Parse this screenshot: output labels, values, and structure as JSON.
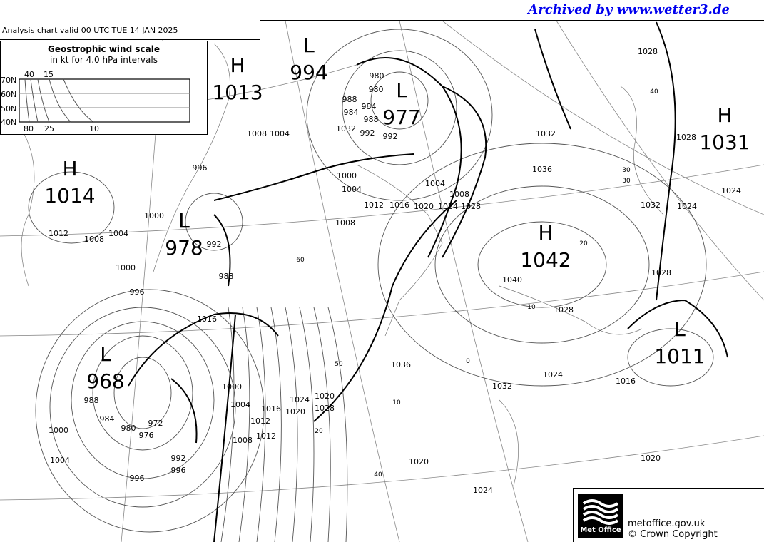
{
  "archive_credit": "Archived by www.wetter3.de",
  "chart_title": "Analysis chart  valid 00 UTC TUE 14  JAN 2025",
  "wind_scale": {
    "title": "Geostrophic wind scale",
    "subtitle": "in kt for 4.0 hPa intervals",
    "latitudes": [
      "70N",
      "60N",
      "50N",
      "40N"
    ],
    "top_labels": [
      "40",
      "15"
    ],
    "bottom_labels": [
      "80",
      "25",
      "10"
    ]
  },
  "pressure_centres": [
    {
      "type": "H",
      "value": "1013"
    },
    {
      "type": "L",
      "value": "994"
    },
    {
      "type": "L",
      "value": "977"
    },
    {
      "type": "H",
      "value": "1031"
    },
    {
      "type": "H",
      "value": "1014"
    },
    {
      "type": "L",
      "value": "978"
    },
    {
      "type": "H",
      "value": "1042"
    },
    {
      "type": "L",
      "value": "968"
    },
    {
      "type": "L",
      "value": "1011"
    }
  ],
  "isobar_labels": [
    "1028",
    "1008",
    "1004",
    "1000",
    "996",
    "1012",
    "1008",
    "1004",
    "1000",
    "996",
    "992",
    "988",
    "980",
    "984",
    "988",
    "992",
    "1000",
    "1004",
    "1008",
    "1012",
    "1016",
    "1020",
    "1024",
    "1028",
    "1032",
    "1036",
    "1040",
    "1028",
    "1024",
    "1032",
    "1016",
    "1020",
    "1024",
    "1028",
    "1032",
    "1036",
    "1000",
    "1004",
    "1008",
    "1012",
    "1016",
    "1020",
    "1024",
    "1028",
    "1032",
    "1028",
    "1024",
    "996",
    "972",
    "976",
    "980",
    "984",
    "988",
    "992",
    "996",
    "1000",
    "1004",
    "1020",
    "1024",
    "1016",
    "1020",
    "1012",
    "1004",
    "1008",
    "980",
    "984",
    "988",
    "992"
  ],
  "latitude_labels": [
    "60",
    "50",
    "40",
    "30",
    "20",
    "10",
    "0",
    "40",
    "30",
    "20",
    "10"
  ],
  "footer": {
    "logo_text": "Met Office",
    "site": "metoffice.gov.uk",
    "copyright": "© Crown Copyright"
  },
  "colors": {
    "archive_credit": "#0000ee",
    "isobar": "#555555",
    "front": "#000000"
  }
}
